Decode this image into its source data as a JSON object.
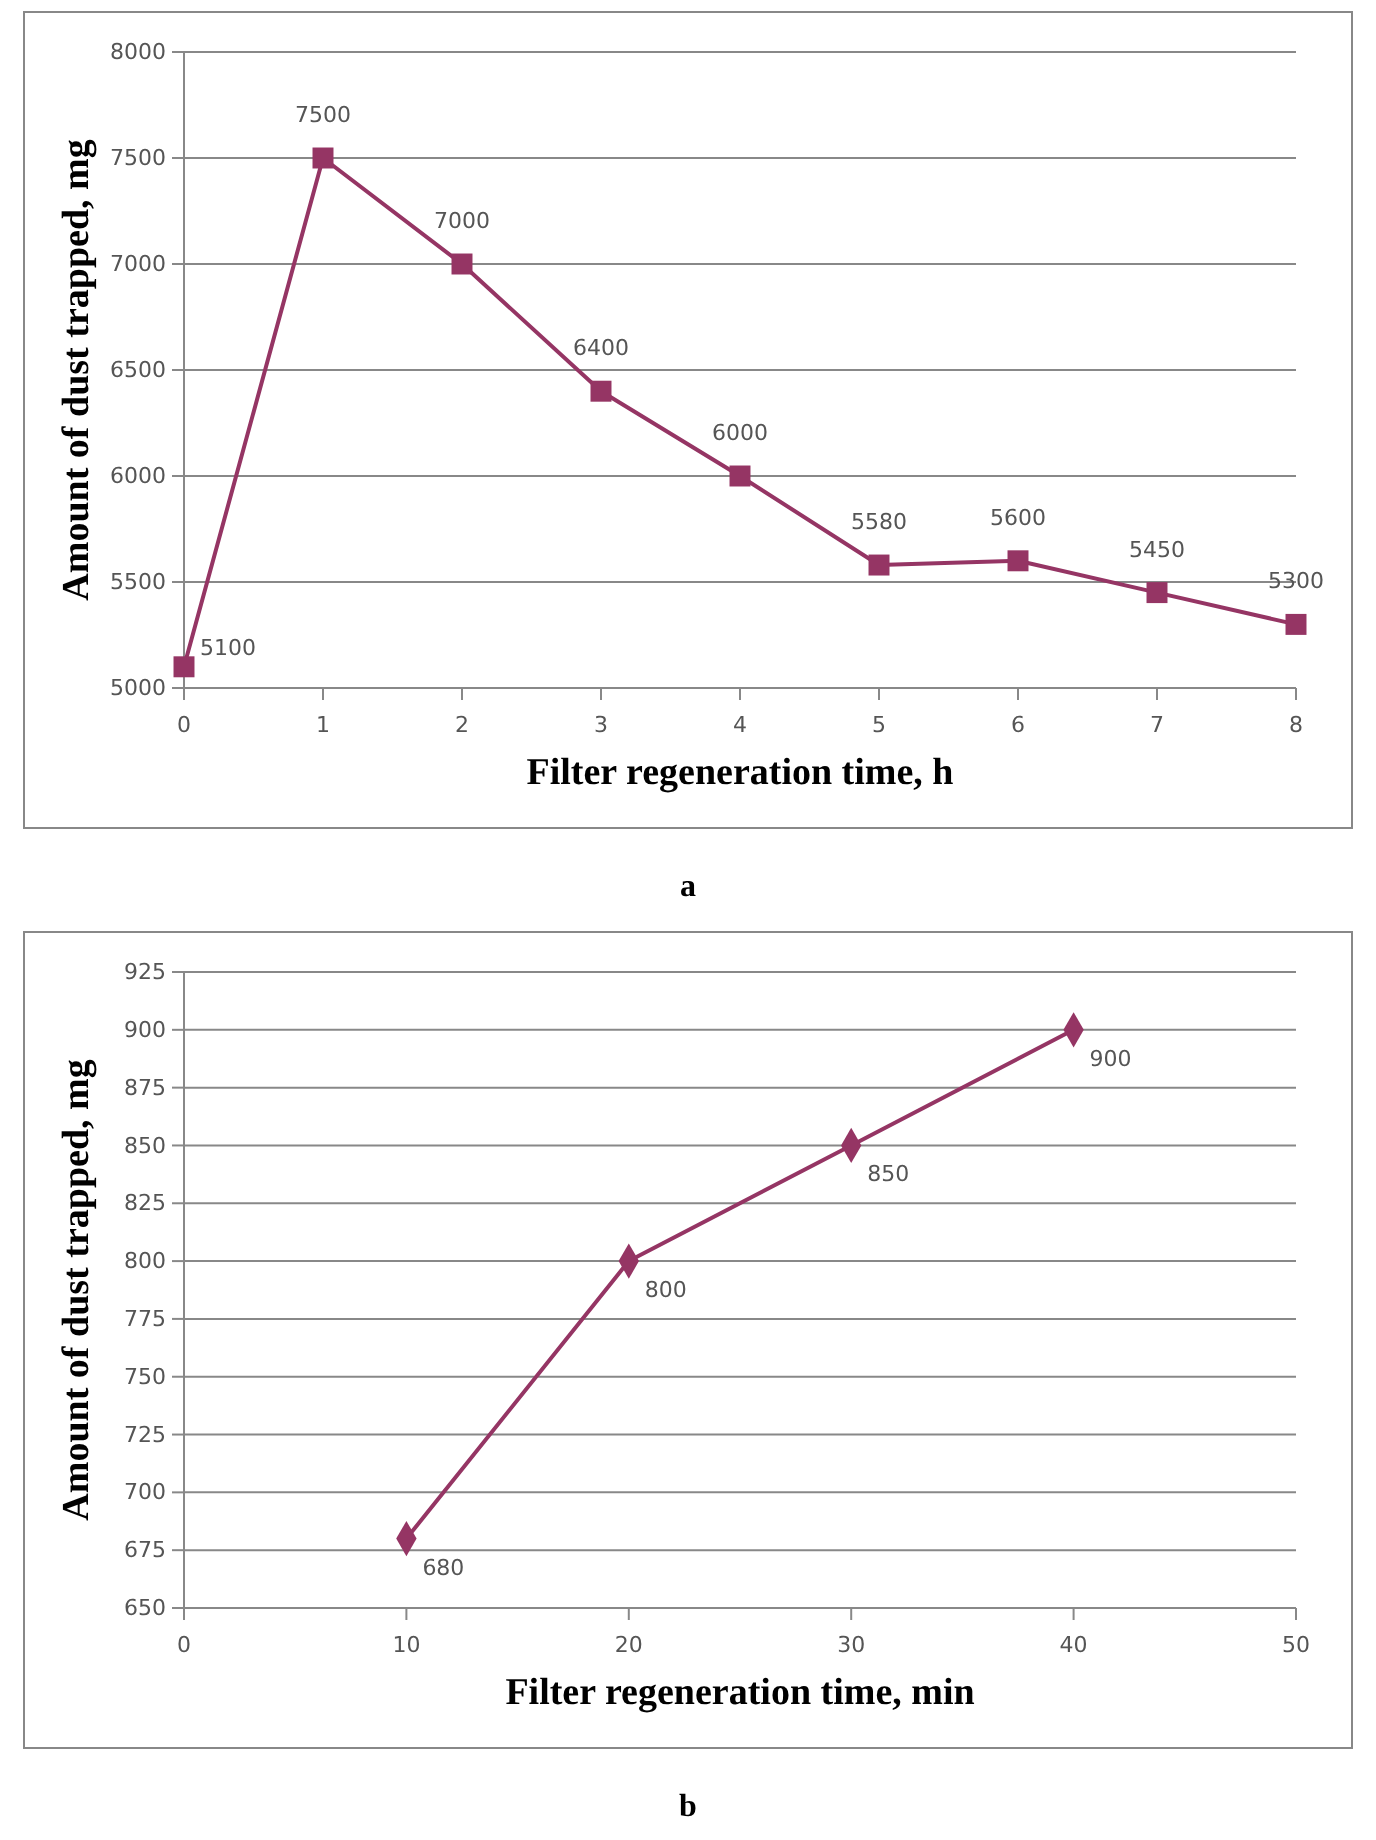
{
  "chart_data": [
    {
      "type": "line",
      "xlabel": "Filter regeneration time, h",
      "ylabel": "Amount of dust trapped, mg",
      "x": [
        0,
        1,
        2,
        3,
        4,
        5,
        6,
        7,
        8
      ],
      "series": [
        {
          "color": "#953564",
          "values": [
            5100,
            7500,
            7000,
            6400,
            6000,
            5580,
            5600,
            5450,
            5300
          ]
        }
      ],
      "xlim": [
        0,
        8
      ],
      "xticks": [
        0,
        1,
        2,
        3,
        4,
        5,
        6,
        7,
        8
      ],
      "ylim": [
        5000,
        8000
      ],
      "yticks": [
        5000,
        5500,
        6000,
        6500,
        7000,
        7500,
        8000
      ],
      "grid": "y",
      "marker": "square",
      "data_labels": true,
      "annotations": [
        "a"
      ]
    },
    {
      "type": "line",
      "xlabel": "Filter regeneration time, min",
      "ylabel": "Amount of dust trapped, mg",
      "x": [
        10,
        20,
        30,
        40
      ],
      "series": [
        {
          "color": "#953564",
          "values": [
            680,
            800,
            850,
            900
          ]
        }
      ],
      "xlim": [
        0,
        50
      ],
      "xticks": [
        0,
        10,
        20,
        30,
        40,
        50
      ],
      "ylim": [
        650,
        925
      ],
      "yticks": [
        650,
        675,
        700,
        725,
        750,
        775,
        800,
        825,
        850,
        875,
        900,
        925
      ],
      "grid": "y",
      "marker": "diamond",
      "data_labels": true,
      "annotations": [
        "b"
      ]
    }
  ]
}
